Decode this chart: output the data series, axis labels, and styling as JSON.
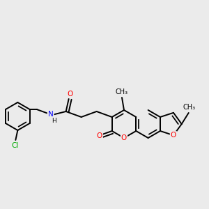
{
  "bg_color": "#ebebeb",
  "bond_color": "#000000",
  "bond_lw": 1.4,
  "atom_colors": {
    "O": "#ff0000",
    "N": "#0000ff",
    "Cl": "#00aa00",
    "C": "#000000",
    "H": "#000000"
  },
  "font_size": 7.5,
  "fig_w": 3.0,
  "fig_h": 3.0,
  "dpi": 100
}
